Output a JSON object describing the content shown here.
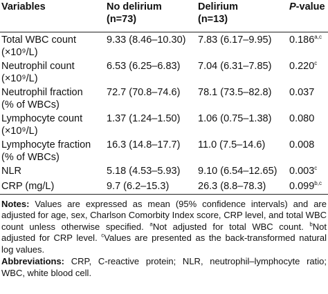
{
  "table": {
    "header": [
      {
        "line1": "Variables"
      },
      {
        "line1": "No delirium",
        "line2": "(n=73)"
      },
      {
        "line1": "Delirium",
        "line2": "(n=13)"
      },
      {
        "line1": "P",
        "line1_rest": "-value"
      }
    ],
    "rows": [
      {
        "label": {
          "line1": "Total WBC count",
          "line2": "(×10⁹/L)"
        },
        "no_delirium": "9.33 (8.46–10.30)",
        "delirium": "7.83 (6.17–9.95)",
        "p": {
          "value": "0.186",
          "note": "a,c"
        }
      },
      {
        "label": {
          "line1": "Neutrophil count",
          "line2": "(×10⁹/L)"
        },
        "no_delirium": "6.53 (6.25–6.83)",
        "delirium": "7.04 (6.31–7.85)",
        "p": {
          "value": "0.220",
          "note": "c"
        }
      },
      {
        "label": {
          "line1": "Neutrophil fraction",
          "line2": "(% of WBCs)"
        },
        "no_delirium": "72.7 (70.8–74.6)",
        "delirium": "78.1 (73.5–82.8)",
        "p": {
          "value": "0.037"
        }
      },
      {
        "label": {
          "line1": "Lymphocyte count",
          "line2": "(×10⁹/L)"
        },
        "no_delirium": "1.37 (1.24–1.50)",
        "delirium": "1.06 (0.75–1.38)",
        "p": {
          "value": "0.080"
        }
      },
      {
        "label": {
          "line1": "Lymphocyte fraction",
          "line2": "(% of WBCs)"
        },
        "no_delirium": "16.3 (14.8–17.7)",
        "delirium": "11.0 (7.5–14.6)",
        "p": {
          "value": "0.008"
        }
      },
      {
        "label": {
          "line1": "NLR"
        },
        "no_delirium": "5.18 (4.53–5.93)",
        "delirium": "9.10 (6.54–12.65)",
        "p": {
          "value": "0.003",
          "note": "c"
        }
      },
      {
        "label": {
          "line1": "CRP (mg/L)"
        },
        "no_delirium": "9.7 (6.2–15.3)",
        "delirium": "26.3 (8.8–78.3)",
        "p": {
          "value": "0.099",
          "note": "b,c"
        }
      }
    ]
  },
  "notes": {
    "label": "Notes:",
    "parts": [
      {
        "text": " Values are expressed as mean (95% confidence intervals) and are adjusted for age, sex, Charlson Comorbity Index score, CRP level, and total WBC count unless otherwise specified. "
      },
      {
        "sup": "a"
      },
      {
        "text": "Not adjusted for total WBC count. "
      },
      {
        "sup": "b"
      },
      {
        "text": "Not adjusted for CRP level. "
      },
      {
        "sup": "c"
      },
      {
        "text": "Values are presented as the back-transformed natural log values."
      }
    ]
  },
  "abbreviations": {
    "label": "Abbreviations:",
    "text": " CRP, C-reactive protein; NLR, neutrophil–lymphocyte ratio; WBC, white blood cell."
  }
}
